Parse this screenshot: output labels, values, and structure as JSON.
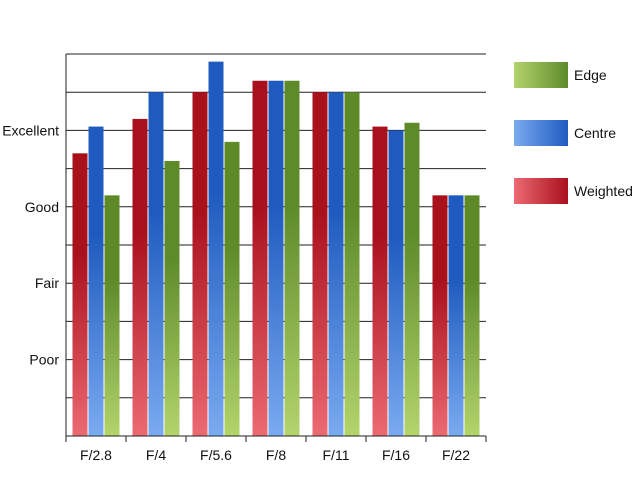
{
  "chart_data": {
    "type": "bar",
    "categories": [
      "F/2.8",
      "F/4",
      "F/5.6",
      "F/8",
      "F/11",
      "F/16",
      "F/22"
    ],
    "y_tick_labels": [
      {
        "label": "Poor",
        "value": 1
      },
      {
        "label": "Fair",
        "value": 2
      },
      {
        "label": "Good",
        "value": 3
      },
      {
        "label": "Excellent",
        "value": 4
      }
    ],
    "ylim": [
      0,
      5
    ],
    "grid": true,
    "legend_position": "right",
    "series": [
      {
        "name": "Weighted",
        "color_dark": "#a8101c",
        "color_light": "#ec6a72",
        "values": [
          3.7,
          4.15,
          4.5,
          4.65,
          4.5,
          4.05,
          3.15
        ]
      },
      {
        "name": "Centre",
        "color_dark": "#1f5bbf",
        "color_light": "#7aaaf0",
        "values": [
          4.05,
          4.5,
          4.9,
          4.65,
          4.5,
          4.0,
          3.15
        ]
      },
      {
        "name": "Edge",
        "color_dark": "#5e8a2a",
        "color_light": "#b4d46c",
        "values": [
          3.15,
          3.6,
          3.85,
          4.65,
          4.5,
          4.1,
          3.15
        ]
      }
    ],
    "legend_order": [
      "Edge",
      "Centre",
      "Weighted"
    ]
  }
}
